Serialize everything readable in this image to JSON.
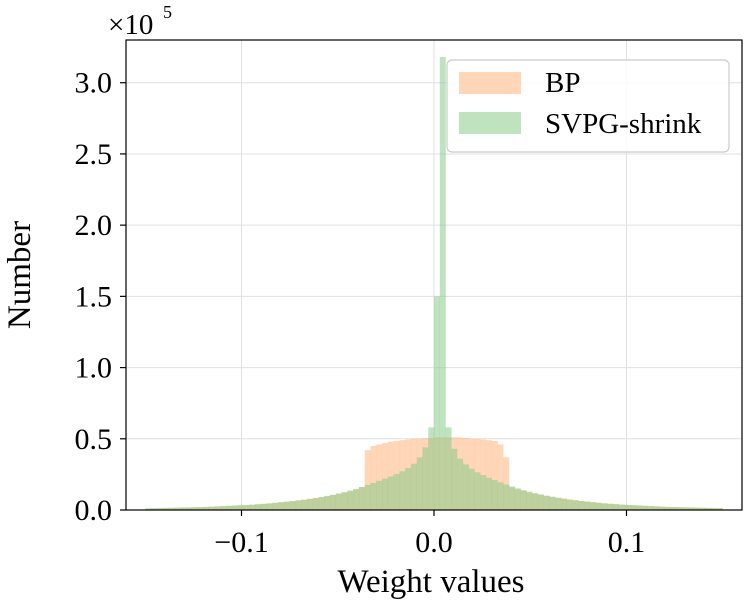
{
  "chart_data": {
    "type": "bar",
    "title": "",
    "xlabel": "Weight values",
    "ylabel": "Number",
    "scale_base": "×10",
    "scale_exp": "5",
    "xlim": [
      -0.16,
      0.16
    ],
    "ylim": [
      0,
      3.3
    ],
    "xticks": [
      -0.1,
      0.0,
      0.1
    ],
    "xtick_labels": [
      "−0.1",
      "0.0",
      "0.1"
    ],
    "yticks": [
      0.0,
      0.5,
      1.0,
      1.5,
      2.0,
      2.5,
      3.0
    ],
    "ytick_labels": [
      "0.0",
      "0.5",
      "1.0",
      "1.5",
      "2.0",
      "2.5",
      "3.0"
    ],
    "grid": true,
    "legend_position": "top-right",
    "bin_width": 0.003,
    "series": [
      {
        "name": "BP",
        "color": "#ffbb88",
        "opacity": 0.6,
        "bins": [
          {
            "x": -0.15,
            "y": 0.01
          },
          {
            "x": -0.147,
            "y": 0.011
          },
          {
            "x": -0.144,
            "y": 0.012
          },
          {
            "x": -0.141,
            "y": 0.013
          },
          {
            "x": -0.138,
            "y": 0.014
          },
          {
            "x": -0.135,
            "y": 0.015
          },
          {
            "x": -0.132,
            "y": 0.016
          },
          {
            "x": -0.129,
            "y": 0.017
          },
          {
            "x": -0.126,
            "y": 0.018
          },
          {
            "x": -0.123,
            "y": 0.019
          },
          {
            "x": -0.12,
            "y": 0.02
          },
          {
            "x": -0.117,
            "y": 0.022
          },
          {
            "x": -0.114,
            "y": 0.024
          },
          {
            "x": -0.111,
            "y": 0.026
          },
          {
            "x": -0.108,
            "y": 0.028
          },
          {
            "x": -0.105,
            "y": 0.03
          },
          {
            "x": -0.102,
            "y": 0.032
          },
          {
            "x": -0.099,
            "y": 0.034
          },
          {
            "x": -0.096,
            "y": 0.036
          },
          {
            "x": -0.093,
            "y": 0.039
          },
          {
            "x": -0.09,
            "y": 0.042
          },
          {
            "x": -0.087,
            "y": 0.045
          },
          {
            "x": -0.084,
            "y": 0.049
          },
          {
            "x": -0.081,
            "y": 0.053
          },
          {
            "x": -0.078,
            "y": 0.057
          },
          {
            "x": -0.075,
            "y": 0.061
          },
          {
            "x": -0.072,
            "y": 0.066
          },
          {
            "x": -0.069,
            "y": 0.071
          },
          {
            "x": -0.066,
            "y": 0.077
          },
          {
            "x": -0.063,
            "y": 0.083
          },
          {
            "x": -0.06,
            "y": 0.09
          },
          {
            "x": -0.057,
            "y": 0.097
          },
          {
            "x": -0.054,
            "y": 0.105
          },
          {
            "x": -0.051,
            "y": 0.113
          },
          {
            "x": -0.048,
            "y": 0.122
          },
          {
            "x": -0.045,
            "y": 0.132
          },
          {
            "x": -0.042,
            "y": 0.143
          },
          {
            "x": -0.039,
            "y": 0.16
          },
          {
            "x": -0.036,
            "y": 0.42
          },
          {
            "x": -0.033,
            "y": 0.45
          },
          {
            "x": -0.03,
            "y": 0.46
          },
          {
            "x": -0.027,
            "y": 0.47
          },
          {
            "x": -0.024,
            "y": 0.48
          },
          {
            "x": -0.021,
            "y": 0.485
          },
          {
            "x": -0.018,
            "y": 0.49
          },
          {
            "x": -0.015,
            "y": 0.495
          },
          {
            "x": -0.012,
            "y": 0.5
          },
          {
            "x": -0.009,
            "y": 0.5
          },
          {
            "x": -0.006,
            "y": 0.505
          },
          {
            "x": -0.003,
            "y": 0.505
          },
          {
            "x": 0.0,
            "y": 0.51
          },
          {
            "x": 0.003,
            "y": 0.51
          },
          {
            "x": 0.006,
            "y": 0.51
          },
          {
            "x": 0.009,
            "y": 0.51
          },
          {
            "x": 0.012,
            "y": 0.51
          },
          {
            "x": 0.015,
            "y": 0.505
          },
          {
            "x": 0.018,
            "y": 0.5
          },
          {
            "x": 0.021,
            "y": 0.5
          },
          {
            "x": 0.024,
            "y": 0.495
          },
          {
            "x": 0.027,
            "y": 0.49
          },
          {
            "x": 0.03,
            "y": 0.485
          },
          {
            "x": 0.033,
            "y": 0.46
          },
          {
            "x": 0.036,
            "y": 0.37
          },
          {
            "x": 0.039,
            "y": 0.16
          },
          {
            "x": 0.042,
            "y": 0.145
          },
          {
            "x": 0.045,
            "y": 0.134
          },
          {
            "x": 0.048,
            "y": 0.124
          },
          {
            "x": 0.051,
            "y": 0.115
          },
          {
            "x": 0.054,
            "y": 0.107
          },
          {
            "x": 0.057,
            "y": 0.099
          },
          {
            "x": 0.06,
            "y": 0.092
          },
          {
            "x": 0.063,
            "y": 0.085
          },
          {
            "x": 0.066,
            "y": 0.079
          },
          {
            "x": 0.069,
            "y": 0.073
          },
          {
            "x": 0.072,
            "y": 0.068
          },
          {
            "x": 0.075,
            "y": 0.063
          },
          {
            "x": 0.078,
            "y": 0.059
          },
          {
            "x": 0.081,
            "y": 0.055
          },
          {
            "x": 0.084,
            "y": 0.051
          },
          {
            "x": 0.087,
            "y": 0.047
          },
          {
            "x": 0.09,
            "y": 0.044
          },
          {
            "x": 0.093,
            "y": 0.041
          },
          {
            "x": 0.096,
            "y": 0.038
          },
          {
            "x": 0.099,
            "y": 0.035
          },
          {
            "x": 0.102,
            "y": 0.033
          },
          {
            "x": 0.105,
            "y": 0.031
          },
          {
            "x": 0.108,
            "y": 0.029
          },
          {
            "x": 0.111,
            "y": 0.027
          },
          {
            "x": 0.114,
            "y": 0.025
          },
          {
            "x": 0.117,
            "y": 0.023
          },
          {
            "x": 0.12,
            "y": 0.021
          },
          {
            "x": 0.123,
            "y": 0.02
          },
          {
            "x": 0.126,
            "y": 0.019
          },
          {
            "x": 0.129,
            "y": 0.018
          },
          {
            "x": 0.132,
            "y": 0.017
          },
          {
            "x": 0.135,
            "y": 0.016
          },
          {
            "x": 0.138,
            "y": 0.015
          },
          {
            "x": 0.141,
            "y": 0.014
          },
          {
            "x": 0.144,
            "y": 0.013
          },
          {
            "x": 0.147,
            "y": 0.012
          }
        ]
      },
      {
        "name": "SVPG-shrink",
        "color": "#88cc88",
        "opacity": 0.55,
        "bins": [
          {
            "x": -0.15,
            "y": 0.012
          },
          {
            "x": -0.147,
            "y": 0.013
          },
          {
            "x": -0.144,
            "y": 0.014
          },
          {
            "x": -0.141,
            "y": 0.015
          },
          {
            "x": -0.138,
            "y": 0.016
          },
          {
            "x": -0.135,
            "y": 0.017
          },
          {
            "x": -0.132,
            "y": 0.018
          },
          {
            "x": -0.129,
            "y": 0.019
          },
          {
            "x": -0.126,
            "y": 0.02
          },
          {
            "x": -0.123,
            "y": 0.021
          },
          {
            "x": -0.12,
            "y": 0.022
          },
          {
            "x": -0.117,
            "y": 0.024
          },
          {
            "x": -0.114,
            "y": 0.026
          },
          {
            "x": -0.111,
            "y": 0.028
          },
          {
            "x": -0.108,
            "y": 0.03
          },
          {
            "x": -0.105,
            "y": 0.032
          },
          {
            "x": -0.102,
            "y": 0.034
          },
          {
            "x": -0.099,
            "y": 0.036
          },
          {
            "x": -0.096,
            "y": 0.038
          },
          {
            "x": -0.093,
            "y": 0.041
          },
          {
            "x": -0.09,
            "y": 0.044
          },
          {
            "x": -0.087,
            "y": 0.047
          },
          {
            "x": -0.084,
            "y": 0.051
          },
          {
            "x": -0.081,
            "y": 0.055
          },
          {
            "x": -0.078,
            "y": 0.059
          },
          {
            "x": -0.075,
            "y": 0.063
          },
          {
            "x": -0.072,
            "y": 0.068
          },
          {
            "x": -0.069,
            "y": 0.073
          },
          {
            "x": -0.066,
            "y": 0.079
          },
          {
            "x": -0.063,
            "y": 0.085
          },
          {
            "x": -0.06,
            "y": 0.092
          },
          {
            "x": -0.057,
            "y": 0.099
          },
          {
            "x": -0.054,
            "y": 0.107
          },
          {
            "x": -0.051,
            "y": 0.116
          },
          {
            "x": -0.048,
            "y": 0.126
          },
          {
            "x": -0.045,
            "y": 0.137
          },
          {
            "x": -0.042,
            "y": 0.149
          },
          {
            "x": -0.039,
            "y": 0.162
          },
          {
            "x": -0.036,
            "y": 0.176
          },
          {
            "x": -0.033,
            "y": 0.19
          },
          {
            "x": -0.03,
            "y": 0.205
          },
          {
            "x": -0.027,
            "y": 0.22
          },
          {
            "x": -0.024,
            "y": 0.236
          },
          {
            "x": -0.021,
            "y": 0.253
          },
          {
            "x": -0.018,
            "y": 0.272
          },
          {
            "x": -0.015,
            "y": 0.295
          },
          {
            "x": -0.012,
            "y": 0.325
          },
          {
            "x": -0.009,
            "y": 0.37
          },
          {
            "x": -0.006,
            "y": 0.44
          },
          {
            "x": -0.003,
            "y": 0.58
          },
          {
            "x": 0.0,
            "y": 1.5
          },
          {
            "x": 0.003,
            "y": 3.18
          },
          {
            "x": 0.006,
            "y": 0.58
          },
          {
            "x": 0.009,
            "y": 0.43
          },
          {
            "x": 0.012,
            "y": 0.36
          },
          {
            "x": 0.015,
            "y": 0.32
          },
          {
            "x": 0.018,
            "y": 0.29
          },
          {
            "x": 0.021,
            "y": 0.265
          },
          {
            "x": 0.024,
            "y": 0.245
          },
          {
            "x": 0.027,
            "y": 0.226
          },
          {
            "x": 0.03,
            "y": 0.21
          },
          {
            "x": 0.033,
            "y": 0.194
          },
          {
            "x": 0.036,
            "y": 0.179
          },
          {
            "x": 0.039,
            "y": 0.165
          },
          {
            "x": 0.042,
            "y": 0.152
          },
          {
            "x": 0.045,
            "y": 0.14
          },
          {
            "x": 0.048,
            "y": 0.129
          },
          {
            "x": 0.051,
            "y": 0.119
          },
          {
            "x": 0.054,
            "y": 0.11
          },
          {
            "x": 0.057,
            "y": 0.101
          },
          {
            "x": 0.06,
            "y": 0.093
          },
          {
            "x": 0.063,
            "y": 0.086
          },
          {
            "x": 0.066,
            "y": 0.08
          },
          {
            "x": 0.069,
            "y": 0.074
          },
          {
            "x": 0.072,
            "y": 0.069
          },
          {
            "x": 0.075,
            "y": 0.064
          },
          {
            "x": 0.078,
            "y": 0.059
          },
          {
            "x": 0.081,
            "y": 0.055
          },
          {
            "x": 0.084,
            "y": 0.051
          },
          {
            "x": 0.087,
            "y": 0.047
          },
          {
            "x": 0.09,
            "y": 0.044
          },
          {
            "x": 0.093,
            "y": 0.041
          },
          {
            "x": 0.096,
            "y": 0.038
          },
          {
            "x": 0.099,
            "y": 0.036
          },
          {
            "x": 0.102,
            "y": 0.034
          },
          {
            "x": 0.105,
            "y": 0.032
          },
          {
            "x": 0.108,
            "y": 0.03
          },
          {
            "x": 0.111,
            "y": 0.028
          },
          {
            "x": 0.114,
            "y": 0.026
          },
          {
            "x": 0.117,
            "y": 0.024
          },
          {
            "x": 0.12,
            "y": 0.022
          },
          {
            "x": 0.123,
            "y": 0.021
          },
          {
            "x": 0.126,
            "y": 0.02
          },
          {
            "x": 0.129,
            "y": 0.019
          },
          {
            "x": 0.132,
            "y": 0.018
          },
          {
            "x": 0.135,
            "y": 0.017
          },
          {
            "x": 0.138,
            "y": 0.016
          },
          {
            "x": 0.141,
            "y": 0.015
          },
          {
            "x": 0.144,
            "y": 0.014
          },
          {
            "x": 0.147,
            "y": 0.013
          }
        ]
      }
    ]
  }
}
